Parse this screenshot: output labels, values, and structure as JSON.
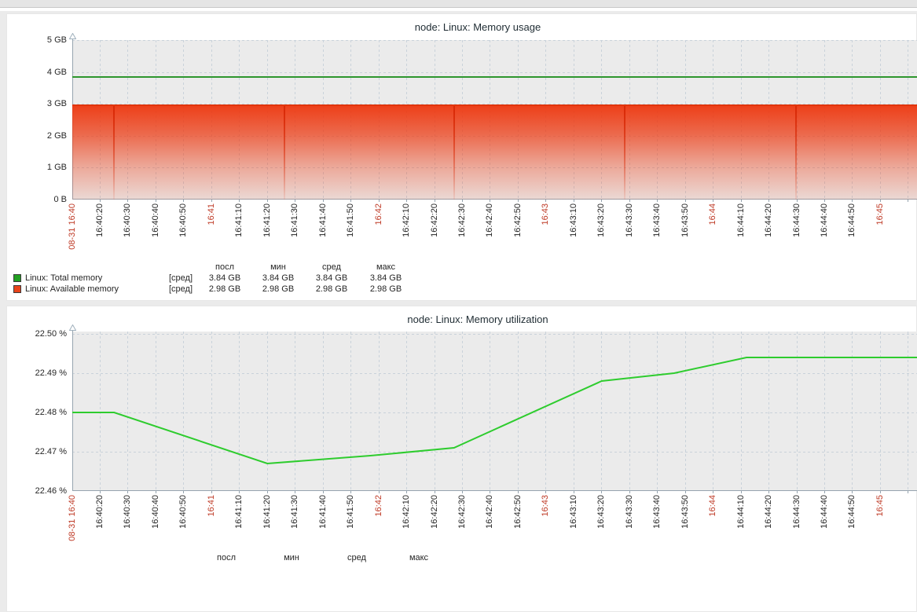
{
  "charts": [
    {
      "title": "node: Linux: Memory usage",
      "y_ticks": [
        "5 GB",
        "4 GB",
        "3 GB",
        "2 GB",
        "1 GB",
        "0 B"
      ],
      "x_ticks": [
        {
          "t": "08-31 16:40",
          "red": true
        },
        {
          "t": "16:40:20"
        },
        {
          "t": "16:40:30"
        },
        {
          "t": "16:40:40"
        },
        {
          "t": "16:40:50"
        },
        {
          "t": "16:41",
          "red": true
        },
        {
          "t": "16:41:10"
        },
        {
          "t": "16:41:20"
        },
        {
          "t": "16:41:30"
        },
        {
          "t": "16:41:40"
        },
        {
          "t": "16:41:50"
        },
        {
          "t": "16:42",
          "red": true
        },
        {
          "t": "16:42:10"
        },
        {
          "t": "16:42:20"
        },
        {
          "t": "16:42:30"
        },
        {
          "t": "16:42:40"
        },
        {
          "t": "16:42:50"
        },
        {
          "t": "16:43",
          "red": true
        },
        {
          "t": "16:43:10"
        },
        {
          "t": "16:43:20"
        },
        {
          "t": "16:43:30"
        },
        {
          "t": "16:43:40"
        },
        {
          "t": "16:43:50"
        },
        {
          "t": "16:44",
          "red": true
        },
        {
          "t": "16:44:10"
        },
        {
          "t": "16:44:20"
        },
        {
          "t": "16:44:30"
        },
        {
          "t": "16:44:40"
        },
        {
          "t": "16:44:50"
        },
        {
          "t": "16:45",
          "red": true
        }
      ],
      "legend": {
        "headers": [
          "посл",
          "мин",
          "сред",
          "макс"
        ],
        "rows": [
          {
            "swatch": "#22A022",
            "label": "Linux: Total memory",
            "agg": "[сред]",
            "values": [
              "3.84 GB",
              "3.84 GB",
              "3.84 GB",
              "3.84 GB"
            ]
          },
          {
            "swatch": "#E8431A",
            "label": "Linux: Available memory",
            "agg": "[сред]",
            "values": [
              "2.98 GB",
              "2.98 GB",
              "2.98 GB",
              "2.98 GB"
            ]
          }
        ]
      }
    },
    {
      "title": "node: Linux: Memory utilization",
      "y_ticks": [
        "22.50 %",
        "22.49 %",
        "22.48 %",
        "22.47 %",
        "22.46 %"
      ],
      "x_ticks": [
        {
          "t": "08-31 16:40",
          "red": true
        },
        {
          "t": "16:40:20"
        },
        {
          "t": "16:40:30"
        },
        {
          "t": "16:40:40"
        },
        {
          "t": "16:40:50"
        },
        {
          "t": "16:41",
          "red": true
        },
        {
          "t": "16:41:10"
        },
        {
          "t": "16:41:20"
        },
        {
          "t": "16:41:30"
        },
        {
          "t": "16:41:40"
        },
        {
          "t": "16:41:50"
        },
        {
          "t": "16:42",
          "red": true
        },
        {
          "t": "16:42:10"
        },
        {
          "t": "16:42:20"
        },
        {
          "t": "16:42:30"
        },
        {
          "t": "16:42:40"
        },
        {
          "t": "16:42:50"
        },
        {
          "t": "16:43",
          "red": true
        },
        {
          "t": "16:43:10"
        },
        {
          "t": "16:43:20"
        },
        {
          "t": "16:43:30"
        },
        {
          "t": "16:43:40"
        },
        {
          "t": "16:43:50"
        },
        {
          "t": "16:44",
          "red": true
        },
        {
          "t": "16:44:10"
        },
        {
          "t": "16:44:20"
        },
        {
          "t": "16:44:30"
        },
        {
          "t": "16:44:40"
        },
        {
          "t": "16:44:50"
        },
        {
          "t": "16:45",
          "red": true
        }
      ],
      "legend": {
        "headers": [
          "посл",
          "мин",
          "сред",
          "макс"
        ],
        "rows": []
      }
    }
  ],
  "chart_data": [
    {
      "type": "area",
      "title": "node: Linux: Memory usage",
      "x_range": [
        "08-31 16:40",
        "16:45"
      ],
      "x_tick_interval_seconds": 10,
      "ylim_gb": [
        0,
        5
      ],
      "y_tick_labels": [
        "0 B",
        "1 GB",
        "2 GB",
        "3 GB",
        "4 GB",
        "5 GB"
      ],
      "grid": true,
      "legend_position": "bottom",
      "series": [
        {
          "name": "Linux: Total memory",
          "style": "line",
          "color": "#2E962E",
          "constant_value_gb": 3.84,
          "stats": {
            "посл": "3.84 GB",
            "мин": "3.84 GB",
            "сред": "3.84 GB",
            "макс": "3.84 GB"
          }
        },
        {
          "name": "Linux: Available memory",
          "style": "gradient-area",
          "color": "#E8380D",
          "constant_value_gb": 2.98,
          "stats": {
            "посл": "2.98 GB",
            "мин": "2.98 GB",
            "сред": "2.98 GB",
            "макс": "2.98 GB"
          }
        }
      ]
    },
    {
      "type": "line",
      "title": "node: Linux: Memory utilization",
      "unit": "%",
      "ylim": [
        22.46,
        22.5
      ],
      "x_range": [
        "08-31 16:40",
        "16:45"
      ],
      "grid": true,
      "series": [
        {
          "name": "Linux: Memory utilization",
          "color": "#2ECC2E",
          "points": [
            [
              "16:40:10",
              22.48
            ],
            [
              "16:40:25",
              22.48
            ],
            [
              "16:41:20",
              22.467
            ],
            [
              "16:41:57",
              22.469
            ],
            [
              "16:42:27",
              22.471
            ],
            [
              "16:43:20",
              22.488
            ],
            [
              "16:43:46",
              22.49
            ],
            [
              "16:44:12",
              22.494
            ],
            [
              "16:45:25",
              22.494
            ]
          ]
        }
      ]
    }
  ]
}
